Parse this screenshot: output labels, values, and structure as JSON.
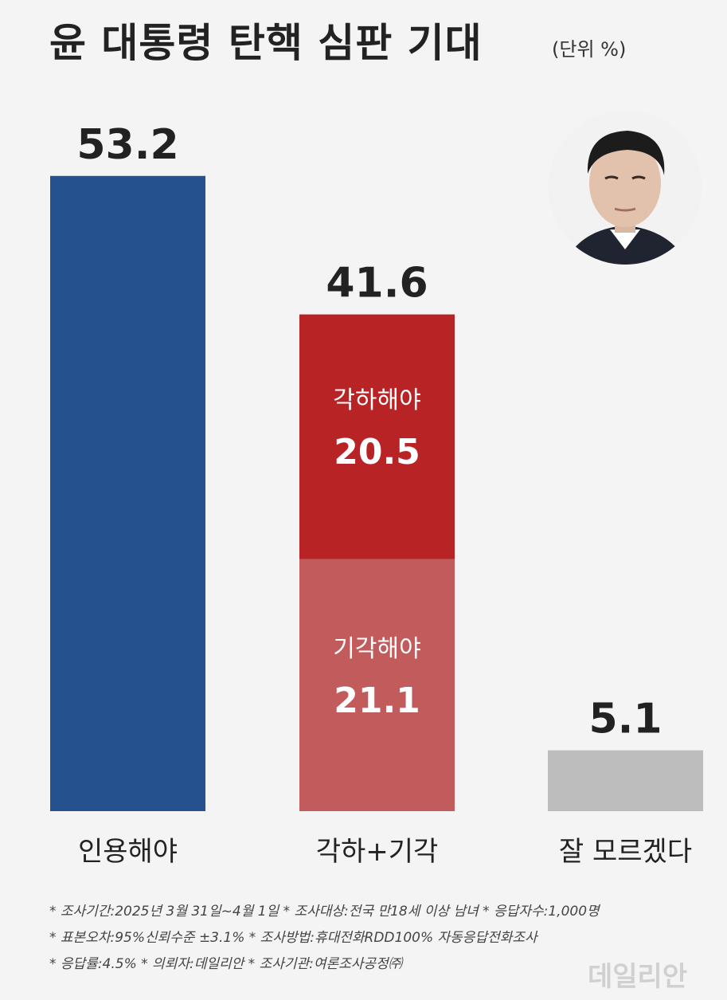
{
  "title": "윤 대통령 탄핵 심판 기대",
  "unit": "(단위 %)",
  "chart_data": {
    "type": "bar",
    "title": "윤 대통령 탄핵 심판 기대",
    "unit": "(단위 %)",
    "categories": [
      "인용해야",
      "각하+기각",
      "잘 모르겠다"
    ],
    "totals": [
      53.2,
      41.6,
      5.1
    ],
    "ylim": [
      0,
      55
    ],
    "stacked": true,
    "series": [
      {
        "category": "인용해야",
        "segments": [
          {
            "name": "",
            "value": 53.2,
            "color": "#25528f"
          }
        ]
      },
      {
        "category": "각하+기각",
        "segments": [
          {
            "name": "기각해야",
            "value": 21.1,
            "color": "#c25b5c"
          },
          {
            "name": "각하해야",
            "value": 20.5,
            "color": "#b82425"
          }
        ]
      },
      {
        "category": "잘 모르겠다",
        "segments": [
          {
            "name": "",
            "value": 5.1,
            "color": "#bdbdbd"
          }
        ]
      }
    ]
  },
  "footnotes": [
    "* 조사기간:2025년 3월 31일~4월 1일  * 조사대상:전국 만18세 이상 남녀  * 응답자수:1,000명",
    "* 표본오차:95%신뢰수준 ±3.1%  * 조사방법:휴대전화RDD100% 자동응답전화조사",
    "* 응답률:4.5%  * 의뢰자:데일리안  * 조사기관:여론조사공정㈜"
  ],
  "watermark": "데일리안",
  "colors": {
    "blue": "#25528f",
    "red_dark": "#b82425",
    "red_light": "#c25b5c",
    "gray": "#bdbdbd",
    "background": "#f4f4f4"
  }
}
